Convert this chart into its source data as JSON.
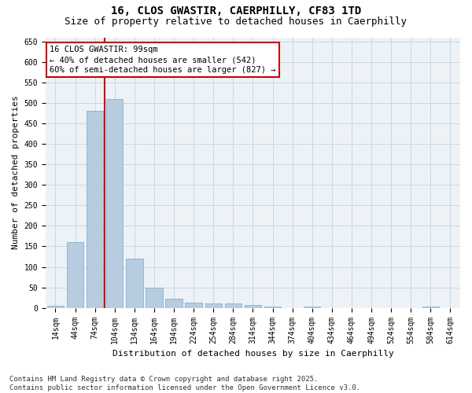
{
  "title_line1": "16, CLOS GWASTIR, CAERPHILLY, CF83 1TD",
  "title_line2": "Size of property relative to detached houses in Caerphilly",
  "xlabel": "Distribution of detached houses by size in Caerphilly",
  "ylabel": "Number of detached properties",
  "categories": [
    "14sqm",
    "44sqm",
    "74sqm",
    "104sqm",
    "134sqm",
    "164sqm",
    "194sqm",
    "224sqm",
    "254sqm",
    "284sqm",
    "314sqm",
    "344sqm",
    "374sqm",
    "404sqm",
    "434sqm",
    "464sqm",
    "494sqm",
    "524sqm",
    "554sqm",
    "584sqm",
    "614sqm"
  ],
  "values": [
    5,
    160,
    480,
    510,
    120,
    50,
    22,
    12,
    10,
    10,
    7,
    3,
    0,
    3,
    0,
    0,
    0,
    0,
    0,
    3,
    0
  ],
  "bar_color": "#b8ccdf",
  "bar_edge_color": "#7aaac8",
  "grid_color": "#c8d8e8",
  "background_color": "#edf2f7",
  "annotation_line1": "16 CLOS GWASTIR: 99sqm",
  "annotation_line2": "← 40% of detached houses are smaller (542)",
  "annotation_line3": "60% of semi-detached houses are larger (827) →",
  "annotation_box_color": "#cc0000",
  "vline_color": "#cc0000",
  "vline_x": 2.5,
  "ylim": [
    0,
    660
  ],
  "yticks": [
    0,
    50,
    100,
    150,
    200,
    250,
    300,
    350,
    400,
    450,
    500,
    550,
    600,
    650
  ],
  "footnote": "Contains HM Land Registry data © Crown copyright and database right 2025.\nContains public sector information licensed under the Open Government Licence v3.0.",
  "title_fontsize": 10,
  "subtitle_fontsize": 9,
  "axis_label_fontsize": 8,
  "tick_fontsize": 7,
  "annotation_fontsize": 7.5,
  "footnote_fontsize": 6.5
}
